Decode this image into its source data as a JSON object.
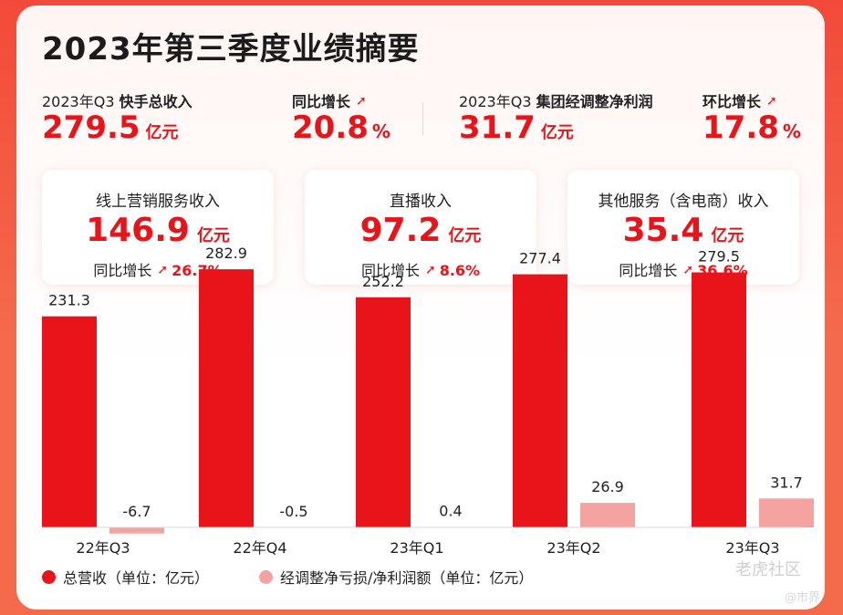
{
  "title": "2023年第三季度业绩摘要",
  "kpis": {
    "revenue_label_prefix": "2023年Q3",
    "revenue_label_main": "快手总收入",
    "revenue_value": "279.5",
    "revenue_unit": "亿元",
    "yoy_label": "同比增长",
    "yoy_value": "20.8",
    "yoy_unit": "%",
    "profit_label_prefix": "2023年Q3",
    "profit_label_main": "集团经调整净利润",
    "profit_value": "31.7",
    "profit_unit": "亿元",
    "qoq_label": "环比增长",
    "qoq_value": "17.8",
    "qoq_unit": "%"
  },
  "segments": [
    {
      "label": "线上营销服务收入",
      "value": "146.9",
      "unit": "亿元",
      "growth_label": "同比增长",
      "growth_value": "26.7%"
    },
    {
      "label": "直播收入",
      "value": "97.2",
      "unit": "亿元",
      "growth_label": "同比增长",
      "growth_value": "8.6%"
    },
    {
      "label": "其他服务（含电商）收入",
      "value": "35.4",
      "unit": "亿元",
      "growth_label": "同比增长",
      "growth_value": "36.6%"
    }
  ],
  "arrow_icon": "up-right-arrow-icon",
  "colors": {
    "red": "#e8141a",
    "pink": "#f4a3a0",
    "accent_bg": "#f24a3a"
  },
  "chart_data": {
    "type": "bar",
    "categories": [
      "22年Q3",
      "22年Q4",
      "23年Q1",
      "23年Q2",
      "23年Q3"
    ],
    "series": [
      {
        "name": "总营收（单位：亿元）",
        "values": [
          231.3,
          282.9,
          252.2,
          277.4,
          279.5
        ],
        "labels": [
          "231.3",
          "282.9",
          "252.2",
          "277.4",
          "279.5"
        ],
        "color": "#e8141a"
      },
      {
        "name": "经调整净亏损/净利润额（单位：亿元）",
        "values": [
          -6.7,
          -0.5,
          0.4,
          26.9,
          31.7
        ],
        "labels": [
          "-6.7",
          "-0.5",
          "0.4",
          "26.9",
          "31.7"
        ],
        "color": "#f4a3a0"
      }
    ],
    "ylim": [
      0,
      300
    ],
    "xlabel": "",
    "ylabel": "",
    "title": ""
  },
  "watermark": {
    "main": "老虎社区",
    "sub": "@市界"
  }
}
